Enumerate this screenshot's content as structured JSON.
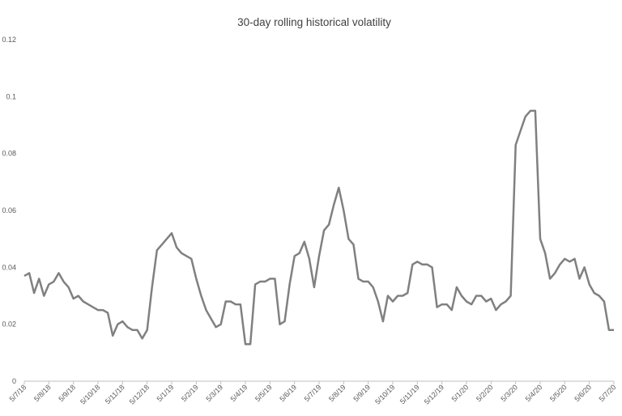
{
  "chart_data": {
    "type": "line",
    "title": "30-day rolling historical volatility",
    "xlabel": "",
    "ylabel": "",
    "ylim": [
      0,
      0.12
    ],
    "y_ticks": [
      "0",
      "0.02",
      "0.04",
      "0.06",
      "0.08",
      "0.1",
      "0.12"
    ],
    "x_ticks": [
      "5/7/18",
      "5/8/18",
      "5/9/18",
      "5/10/18",
      "5/11/18",
      "5/12/18",
      "5/1/19",
      "5/2/19",
      "5/3/19",
      "5/4/19",
      "5/5/19",
      "5/6/19",
      "5/7/19",
      "5/8/19",
      "5/9/19",
      "5/10/19",
      "5/11/19",
      "5/12/19",
      "5/1/20",
      "5/2/20",
      "5/3/20",
      "5/4/20",
      "5/5/20",
      "5/6/20",
      "5/7/20"
    ],
    "grid": false,
    "legend": "none",
    "line_color": "#808080",
    "series": [
      {
        "x": [
          0,
          0.2,
          0.4,
          0.6,
          0.8,
          1.0,
          1.2,
          1.4,
          1.6,
          1.8,
          2.0,
          2.2,
          2.4,
          2.6,
          2.8,
          3.0,
          3.2,
          3.4,
          3.6,
          3.8,
          4.0,
          4.2,
          4.4,
          4.6,
          4.8,
          5.0,
          5.2,
          5.4,
          5.6,
          5.8,
          6.0,
          6.2,
          6.4,
          6.6,
          6.8,
          7.0,
          7.2,
          7.4,
          7.6,
          7.8,
          8.0,
          8.2,
          8.4,
          8.6,
          8.8,
          9.0,
          9.2,
          9.4,
          9.6,
          9.8,
          10.0,
          10.2,
          10.4,
          10.6,
          10.8,
          11.0,
          11.2,
          11.4,
          11.6,
          11.8,
          12.0,
          12.2,
          12.4,
          12.6,
          12.8,
          13.0,
          13.2,
          13.4,
          13.6,
          13.8,
          14.0,
          14.2,
          14.4,
          14.6,
          14.8,
          15.0,
          15.2,
          15.4,
          15.6,
          15.8,
          16.0,
          16.2,
          16.4,
          16.6,
          16.8,
          17.0,
          17.2,
          17.4,
          17.6,
          17.8,
          18.0,
          18.2,
          18.4,
          18.6,
          18.8,
          19.0,
          19.2,
          19.4,
          19.6,
          19.8,
          20.0,
          20.2,
          20.4,
          20.6,
          20.8,
          21.0,
          21.2,
          21.4,
          21.6,
          21.8,
          22.0,
          22.2,
          22.4,
          22.6,
          22.8,
          23.0,
          23.2,
          23.4,
          23.6,
          23.8,
          24.0
        ],
        "values": [
          0.037,
          0.038,
          0.031,
          0.036,
          0.03,
          0.034,
          0.035,
          0.038,
          0.035,
          0.033,
          0.029,
          0.03,
          0.028,
          0.027,
          0.026,
          0.025,
          0.025,
          0.024,
          0.016,
          0.02,
          0.021,
          0.019,
          0.018,
          0.018,
          0.015,
          0.018,
          0.033,
          0.046,
          0.048,
          0.05,
          0.052,
          0.047,
          0.045,
          0.044,
          0.043,
          0.036,
          0.03,
          0.025,
          0.022,
          0.019,
          0.02,
          0.028,
          0.028,
          0.027,
          0.027,
          0.013,
          0.013,
          0.034,
          0.035,
          0.035,
          0.036,
          0.036,
          0.02,
          0.021,
          0.034,
          0.044,
          0.045,
          0.049,
          0.043,
          0.033,
          0.044,
          0.053,
          0.055,
          0.062,
          0.068,
          0.06,
          0.05,
          0.048,
          0.036,
          0.035,
          0.035,
          0.033,
          0.028,
          0.021,
          0.03,
          0.028,
          0.03,
          0.03,
          0.031,
          0.041,
          0.042,
          0.041,
          0.041,
          0.04,
          0.026,
          0.027,
          0.027,
          0.025,
          0.033,
          0.03,
          0.028,
          0.027,
          0.03,
          0.03,
          0.028,
          0.029,
          0.025,
          0.027,
          0.028,
          0.03,
          0.083,
          0.088,
          0.093,
          0.095,
          0.095,
          0.05,
          0.045,
          0.036,
          0.038,
          0.041,
          0.043,
          0.042,
          0.043,
          0.036,
          0.04,
          0.034,
          0.031,
          0.03,
          0.028,
          0.018,
          0.018
        ]
      }
    ]
  }
}
